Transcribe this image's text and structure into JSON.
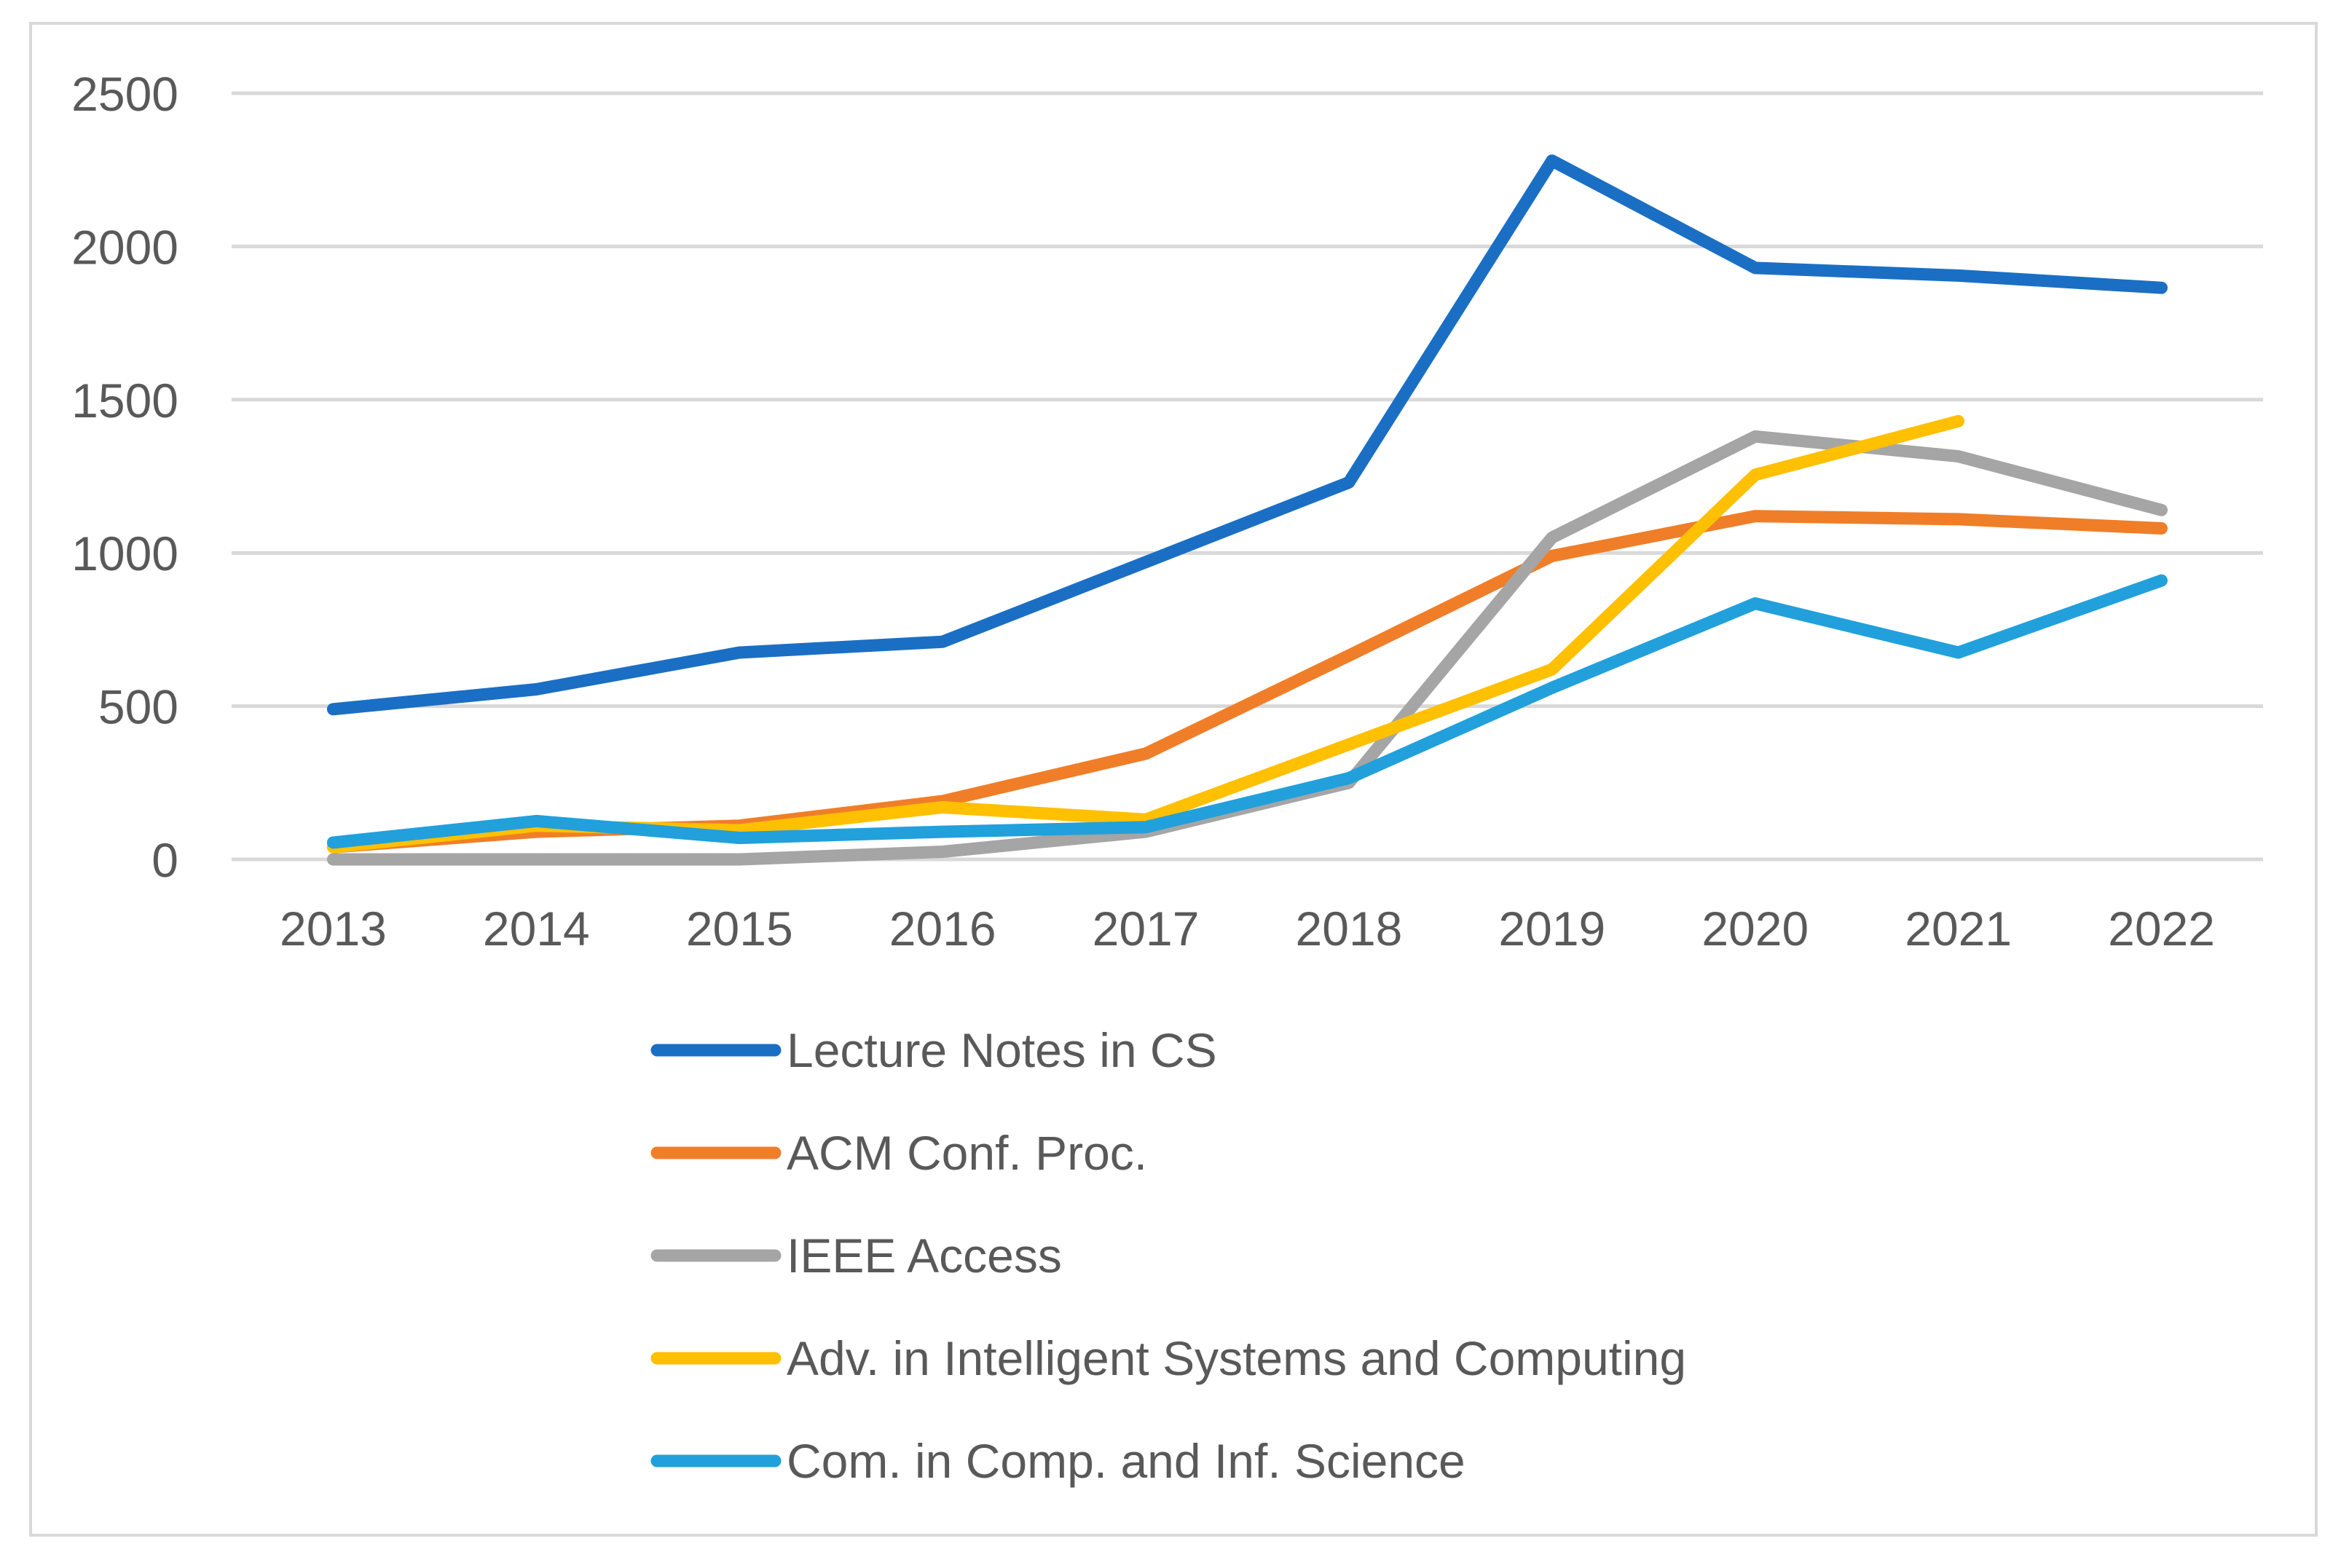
{
  "chart_data": {
    "type": "line",
    "title": "",
    "xlabel": "",
    "ylabel": "",
    "categories": [
      "2013",
      "2014",
      "2015",
      "2016",
      "2017",
      "2018",
      "2019",
      "2020",
      "2021",
      "2022"
    ],
    "ylim": [
      0,
      2500
    ],
    "yticks": [
      0,
      500,
      1000,
      1500,
      2000,
      2500
    ],
    "grid": true,
    "legend_position": "bottom",
    "series": [
      {
        "name": "Lecture Notes in CS",
        "color": "#1a6fc4",
        "values": [
          490,
          555,
          675,
          710,
          970,
          1230,
          2280,
          1930,
          1905,
          1865
        ]
      },
      {
        "name": "ACM Conf. Proc.",
        "color": "#f07e28",
        "values": [
          40,
          90,
          110,
          190,
          345,
          665,
          990,
          1120,
          1110,
          1080
        ]
      },
      {
        "name": "IEEE Access",
        "color": "#a5a5a5",
        "values": [
          0,
          0,
          0,
          25,
          90,
          250,
          1050,
          1380,
          1315,
          1140
        ]
      },
      {
        "name": "Adv. in Intelligent Systems and Computing",
        "color": "#ffc000",
        "values": [
          40,
          110,
          95,
          170,
          130,
          375,
          620,
          1255,
          1430,
          null
        ]
      },
      {
        "name": "Com. in Comp. and Inf. Science",
        "color": "#21a0dc",
        "values": [
          55,
          125,
          70,
          90,
          105,
          265,
          560,
          835,
          675,
          910
        ]
      }
    ]
  }
}
